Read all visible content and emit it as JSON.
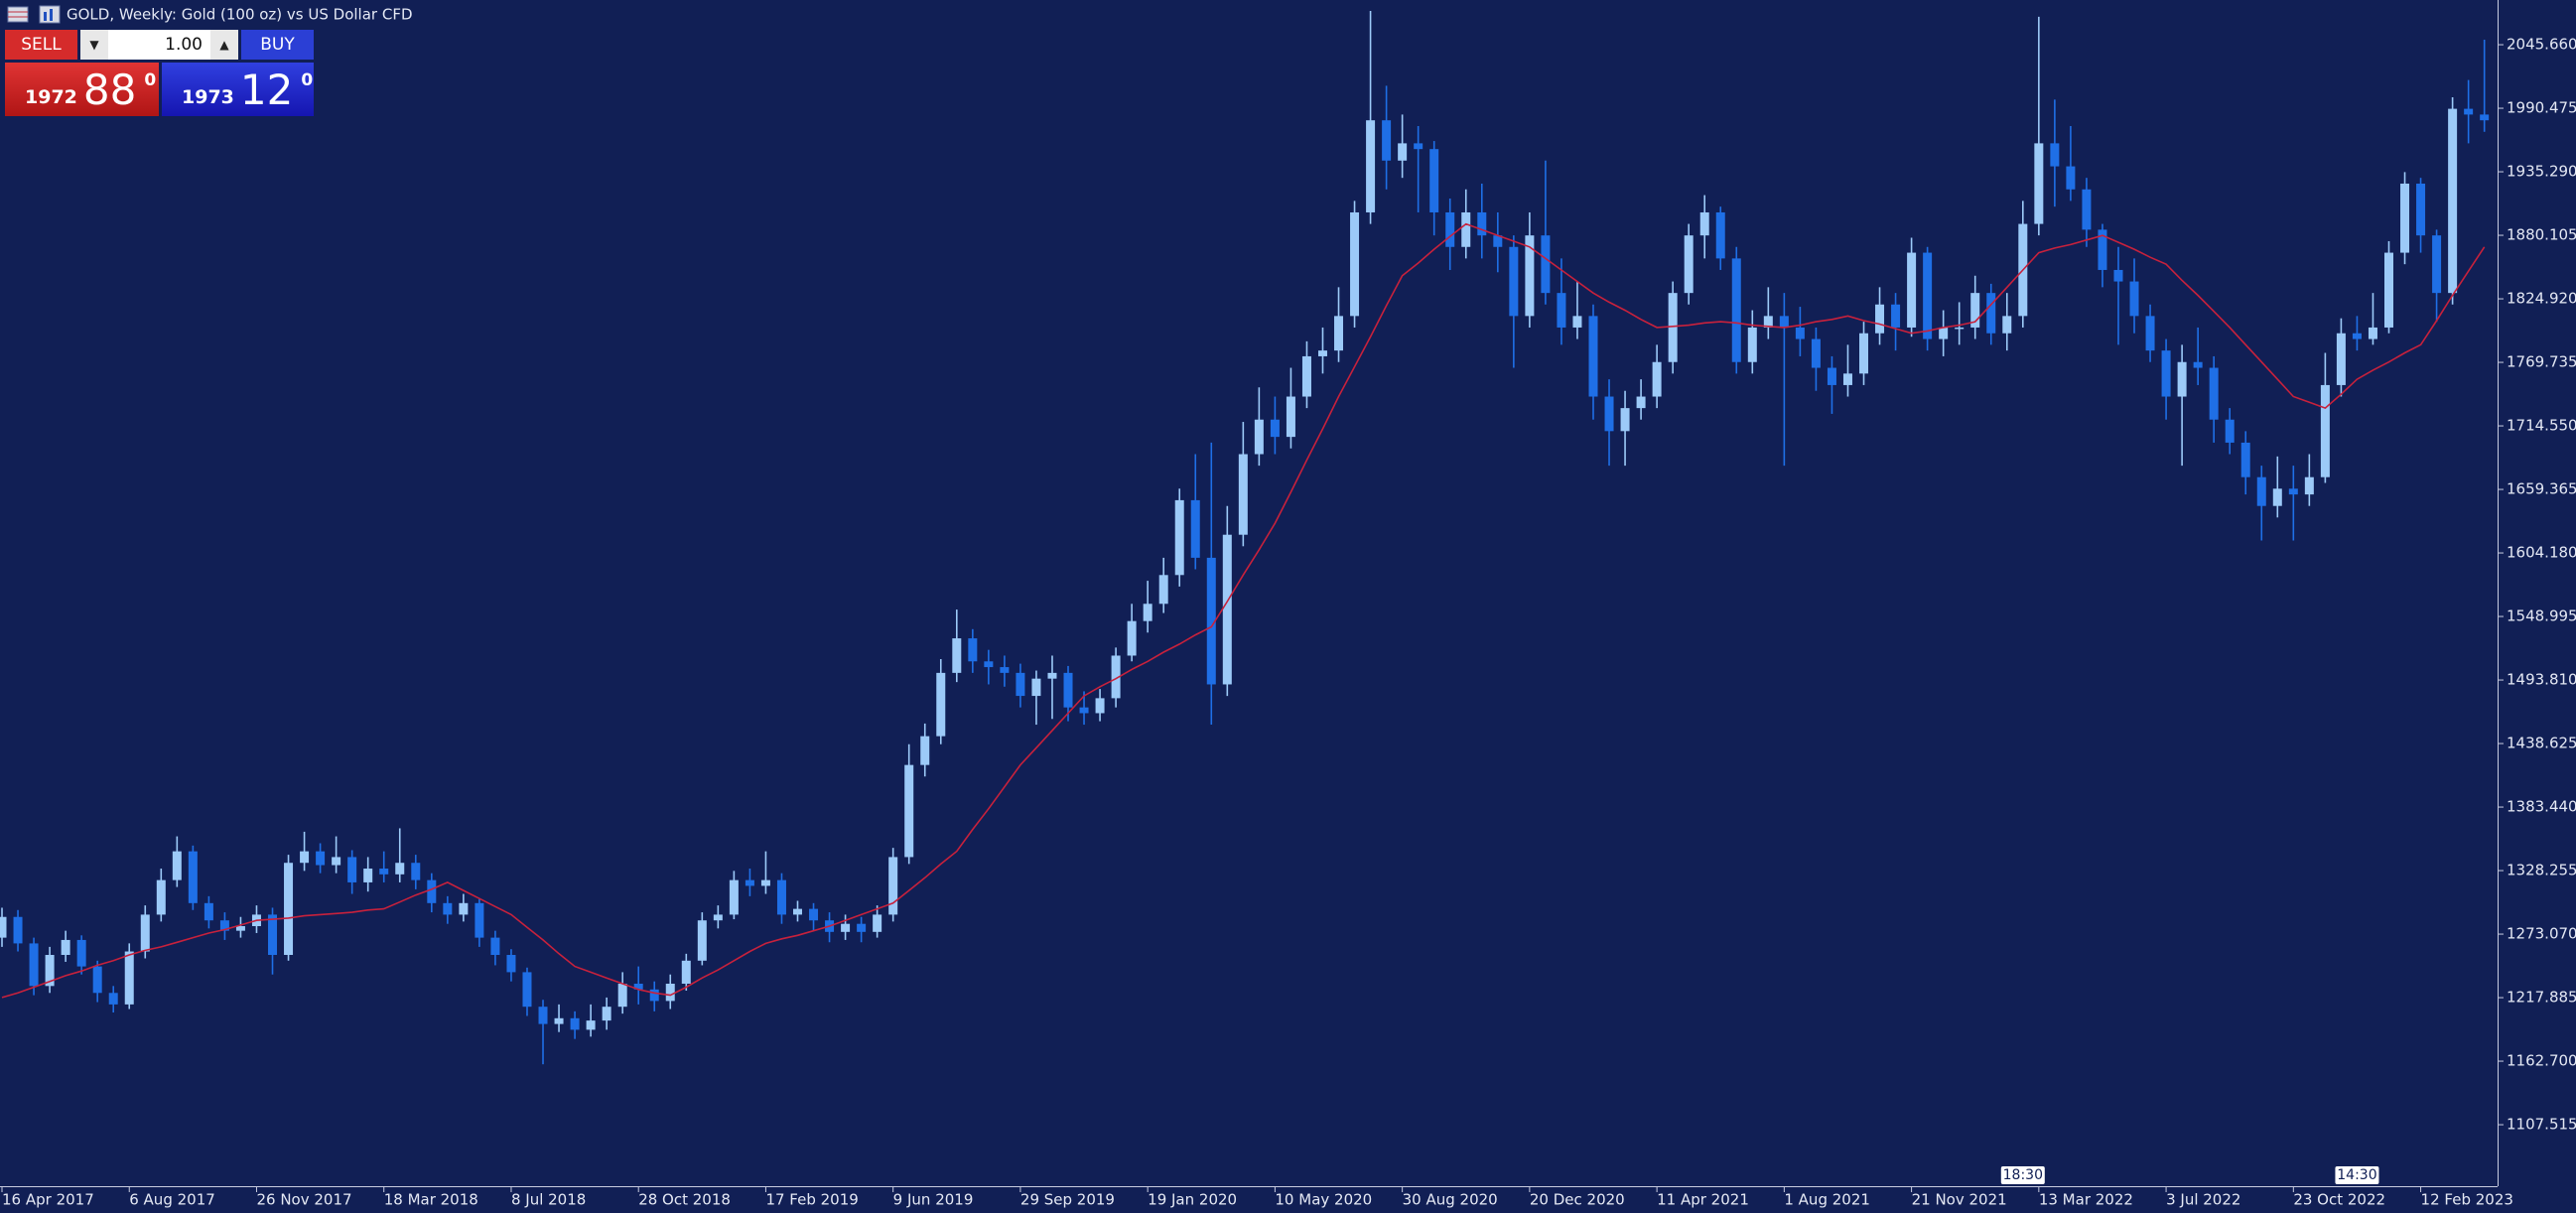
{
  "chart_data": {
    "type": "candlestick",
    "title": "GOLD, Weekly:  Gold (100 oz) vs US Dollar CFD",
    "open": [
      1270,
      1288,
      1265,
      1228,
      1255,
      1268,
      1245,
      1222,
      1212,
      1258,
      1290,
      1320,
      1345,
      1300,
      1285,
      1276,
      1280,
      1290,
      1255,
      1335,
      1345,
      1333,
      1340,
      1318,
      1330,
      1325,
      1335,
      1320,
      1300,
      1290,
      1300,
      1270,
      1255,
      1240,
      1210,
      1195,
      1200,
      1190,
      1198,
      1210,
      1230,
      1225,
      1215,
      1230,
      1250,
      1285,
      1290,
      1320,
      1315,
      1320,
      1290,
      1295,
      1285,
      1275,
      1282,
      1275,
      1290,
      1340,
      1420,
      1445,
      1500,
      1530,
      1510,
      1505,
      1500,
      1480,
      1495,
      1500,
      1470,
      1465,
      1478,
      1515,
      1545,
      1560,
      1585,
      1650,
      1600,
      1490,
      1620,
      1690,
      1720,
      1705,
      1740,
      1775,
      1780,
      1810,
      1900,
      1980,
      1945,
      1960,
      1955,
      1900,
      1870,
      1900,
      1880,
      1870,
      1810,
      1880,
      1830,
      1800,
      1810,
      1740,
      1710,
      1730,
      1740,
      1770,
      1830,
      1880,
      1900,
      1860,
      1770,
      1800,
      1810,
      1800,
      1790,
      1765,
      1750,
      1760,
      1795,
      1820,
      1800,
      1865,
      1790,
      1800,
      1800,
      1830,
      1795,
      1810,
      1890,
      1960,
      1940,
      1920,
      1885,
      1850,
      1840,
      1810,
      1780,
      1740,
      1770,
      1765,
      1720,
      1700,
      1670,
      1645,
      1660,
      1655,
      1670,
      1750,
      1795,
      1790,
      1800,
      1865,
      1925,
      1880,
      1830,
      1990,
      1985
    ],
    "high": [
      1296,
      1294,
      1270,
      1262,
      1276,
      1272,
      1250,
      1228,
      1265,
      1298,
      1330,
      1358,
      1350,
      1306,
      1292,
      1288,
      1298,
      1296,
      1342,
      1362,
      1352,
      1358,
      1346,
      1340,
      1345,
      1365,
      1342,
      1326,
      1306,
      1308,
      1304,
      1276,
      1260,
      1244,
      1216,
      1212,
      1206,
      1212,
      1218,
      1240,
      1245,
      1232,
      1238,
      1256,
      1292,
      1298,
      1328,
      1330,
      1345,
      1326,
      1302,
      1300,
      1292,
      1290,
      1288,
      1298,
      1348,
      1438,
      1456,
      1512,
      1555,
      1538,
      1520,
      1515,
      1508,
      1502,
      1515,
      1506,
      1484,
      1486,
      1522,
      1560,
      1580,
      1600,
      1660,
      1690,
      1700,
      1645,
      1718,
      1748,
      1740,
      1765,
      1788,
      1800,
      1835,
      1910,
      2075,
      2010,
      1985,
      1975,
      1962,
      1912,
      1920,
      1925,
      1900,
      1880,
      1900,
      1945,
      1860,
      1840,
      1820,
      1755,
      1745,
      1755,
      1785,
      1840,
      1890,
      1915,
      1905,
      1870,
      1815,
      1835,
      1830,
      1818,
      1800,
      1775,
      1785,
      1805,
      1835,
      1830,
      1878,
      1870,
      1815,
      1822,
      1845,
      1838,
      1830,
      1910,
      2070,
      1998,
      1975,
      1930,
      1890,
      1870,
      1860,
      1820,
      1790,
      1785,
      1800,
      1775,
      1730,
      1710,
      1680,
      1688,
      1680,
      1690,
      1778,
      1808,
      1810,
      1830,
      1875,
      1935,
      1930,
      1885,
      2000,
      2015,
      2050
    ],
    "low": [
      1262,
      1258,
      1220,
      1222,
      1249,
      1238,
      1214,
      1205,
      1208,
      1252,
      1284,
      1314,
      1294,
      1278,
      1268,
      1270,
      1274,
      1238,
      1250,
      1328,
      1326,
      1326,
      1308,
      1310,
      1318,
      1318,
      1312,
      1292,
      1282,
      1284,
      1262,
      1246,
      1232,
      1202,
      1160,
      1188,
      1182,
      1184,
      1190,
      1204,
      1212,
      1206,
      1208,
      1224,
      1246,
      1278,
      1286,
      1306,
      1308,
      1282,
      1284,
      1276,
      1266,
      1268,
      1266,
      1270,
      1284,
      1334,
      1410,
      1438,
      1492,
      1500,
      1490,
      1488,
      1470,
      1455,
      1460,
      1458,
      1455,
      1458,
      1470,
      1510,
      1535,
      1552,
      1575,
      1590,
      1455,
      1480,
      1610,
      1680,
      1690,
      1695,
      1730,
      1760,
      1770,
      1800,
      1890,
      1920,
      1930,
      1900,
      1880,
      1850,
      1860,
      1860,
      1848,
      1765,
      1800,
      1820,
      1785,
      1790,
      1720,
      1680,
      1680,
      1720,
      1730,
      1760,
      1820,
      1860,
      1850,
      1760,
      1760,
      1790,
      1680,
      1775,
      1745,
      1725,
      1740,
      1750,
      1785,
      1780,
      1792,
      1780,
      1775,
      1785,
      1790,
      1785,
      1780,
      1800,
      1880,
      1905,
      1910,
      1870,
      1835,
      1785,
      1795,
      1770,
      1720,
      1680,
      1750,
      1700,
      1690,
      1655,
      1615,
      1635,
      1615,
      1645,
      1665,
      1740,
      1780,
      1785,
      1795,
      1855,
      1865,
      1805,
      1820,
      1960,
      1970
    ],
    "close": [
      1288,
      1265,
      1228,
      1255,
      1268,
      1245,
      1222,
      1212,
      1258,
      1290,
      1320,
      1345,
      1300,
      1285,
      1276,
      1280,
      1290,
      1255,
      1335,
      1345,
      1333,
      1340,
      1318,
      1330,
      1325,
      1335,
      1320,
      1300,
      1290,
      1300,
      1270,
      1255,
      1240,
      1210,
      1195,
      1200,
      1190,
      1198,
      1210,
      1230,
      1225,
      1215,
      1230,
      1250,
      1285,
      1290,
      1320,
      1315,
      1320,
      1290,
      1295,
      1285,
      1275,
      1282,
      1275,
      1290,
      1340,
      1420,
      1445,
      1500,
      1530,
      1510,
      1505,
      1500,
      1480,
      1495,
      1500,
      1470,
      1465,
      1478,
      1515,
      1545,
      1560,
      1585,
      1650,
      1600,
      1490,
      1620,
      1690,
      1720,
      1705,
      1740,
      1775,
      1780,
      1810,
      1900,
      1980,
      1945,
      1960,
      1955,
      1900,
      1870,
      1900,
      1880,
      1870,
      1810,
      1880,
      1830,
      1800,
      1810,
      1740,
      1710,
      1730,
      1740,
      1770,
      1830,
      1880,
      1900,
      1860,
      1770,
      1800,
      1810,
      1800,
      1790,
      1765,
      1750,
      1760,
      1795,
      1820,
      1800,
      1865,
      1790,
      1800,
      1800,
      1830,
      1795,
      1810,
      1890,
      1960,
      1940,
      1920,
      1885,
      1850,
      1840,
      1810,
      1780,
      1740,
      1770,
      1765,
      1720,
      1700,
      1670,
      1645,
      1660,
      1655,
      1670,
      1750,
      1795,
      1790,
      1800,
      1865,
      1925,
      1880,
      1830,
      1990,
      1985,
      1980
    ],
    "up_color": "#9ccaf8",
    "down_color": "#1f6fe6",
    "moving_average": {
      "color": "#c8213c",
      "values": [
        1218,
        1222,
        1227,
        1232,
        1237,
        1241,
        1246,
        1250,
        1255,
        1259,
        1262,
        1266,
        1270,
        1274,
        1277,
        1281,
        1285,
        1286,
        1287,
        1289,
        1290,
        1291,
        1292,
        1294,
        1295,
        1301,
        1307,
        1312,
        1318,
        1311,
        1304,
        1297,
        1290,
        1279,
        1268,
        1256,
        1245,
        1240,
        1235,
        1230,
        1225,
        1222,
        1220,
        1227,
        1235,
        1242,
        1250,
        1258,
        1265,
        1269,
        1272,
        1276,
        1280,
        1285,
        1290,
        1295,
        1300,
        1311,
        1322,
        1334,
        1345,
        1364,
        1382,
        1401,
        1420,
        1435,
        1450,
        1465,
        1480,
        1488,
        1495,
        1503,
        1510,
        1518,
        1525,
        1533,
        1540,
        1562,
        1585,
        1607,
        1630,
        1657,
        1685,
        1712,
        1740,
        1766,
        1792,
        1819,
        1845,
        1856,
        1868,
        1879,
        1890,
        1885,
        1880,
        1875,
        1870,
        1860,
        1850,
        1840,
        1830,
        1822,
        1815,
        1807,
        1800,
        1801,
        1802,
        1804,
        1805,
        1804,
        1802,
        1801,
        1800,
        1802,
        1805,
        1807,
        1810,
        1806,
        1803,
        1799,
        1795,
        1797,
        1800,
        1802,
        1805,
        1820,
        1835,
        1850,
        1865,
        1869,
        1872,
        1876,
        1880,
        1874,
        1868,
        1861,
        1855,
        1841,
        1828,
        1814,
        1800,
        1785,
        1770,
        1755,
        1740,
        1735,
        1730,
        1742,
        1755,
        1763,
        1770,
        1778,
        1785,
        1806,
        1828,
        1849,
        1870
      ]
    },
    "ylim": [
      1054.1,
      2084.5
    ],
    "yticks": [
      {
        "value": 2045.66,
        "label": "2045.660"
      },
      {
        "value": 1990.475,
        "label": "1990.475"
      },
      {
        "value": 1935.29,
        "label": "1935.290"
      },
      {
        "value": 1880.105,
        "label": "1880.105"
      },
      {
        "value": 1824.92,
        "label": "1824.920"
      },
      {
        "value": 1769.735,
        "label": "1769.735"
      },
      {
        "value": 1714.55,
        "label": "1714.550"
      },
      {
        "value": 1659.365,
        "label": "1659.365"
      },
      {
        "value": 1604.18,
        "label": "1604.180"
      },
      {
        "value": 1548.995,
        "label": "1548.995"
      },
      {
        "value": 1493.81,
        "label": "1493.810"
      },
      {
        "value": 1438.625,
        "label": "1438.625"
      },
      {
        "value": 1383.44,
        "label": "1383.440"
      },
      {
        "value": 1328.255,
        "label": "1328.255"
      },
      {
        "value": 1273.07,
        "label": "1273.070"
      },
      {
        "value": 1217.885,
        "label": "1217.885"
      },
      {
        "value": 1162.7,
        "label": "1162.700"
      },
      {
        "value": 1107.515,
        "label": "1107.515"
      }
    ],
    "xticks": [
      {
        "value": 0,
        "label": "16 Apr 2017"
      },
      {
        "value": 8,
        "label": "6 Aug 2017"
      },
      {
        "value": 16,
        "label": "26 Nov 2017"
      },
      {
        "value": 24,
        "label": "18 Mar 2018"
      },
      {
        "value": 32,
        "label": "8 Jul 2018"
      },
      {
        "value": 40,
        "label": "28 Oct 2018"
      },
      {
        "value": 48,
        "label": "17 Feb 2019"
      },
      {
        "value": 56,
        "label": "9 Jun 2019"
      },
      {
        "value": 64,
        "label": "29 Sep 2019"
      },
      {
        "value": 72,
        "label": "19 Jan 2020"
      },
      {
        "value": 80,
        "label": "10 May 2020"
      },
      {
        "value": 88,
        "label": "30 Aug 2020"
      },
      {
        "value": 96,
        "label": "20 Dec 2020"
      },
      {
        "value": 104,
        "label": "11 Apr 2021"
      },
      {
        "value": 112,
        "label": "1 Aug 2021"
      },
      {
        "value": 120,
        "label": "21 Nov 2021"
      },
      {
        "value": 128,
        "label": "13 Mar 2022"
      },
      {
        "value": 136,
        "label": "3 Jul 2022"
      },
      {
        "value": 144,
        "label": "23 Oct 2022"
      },
      {
        "value": 152,
        "label": "12 Feb 2023"
      }
    ],
    "time_markers": [
      {
        "value": 127,
        "label": "18:30"
      },
      {
        "value": 148,
        "label": "14:30"
      }
    ]
  },
  "trade_panel": {
    "sell": "SELL",
    "buy": "BUY",
    "lot": "1.00",
    "bid": {
      "big": "1972",
      "main": "88",
      "sup": "0"
    },
    "ask": {
      "big": "1973",
      "main": "12",
      "sup": "0"
    }
  }
}
